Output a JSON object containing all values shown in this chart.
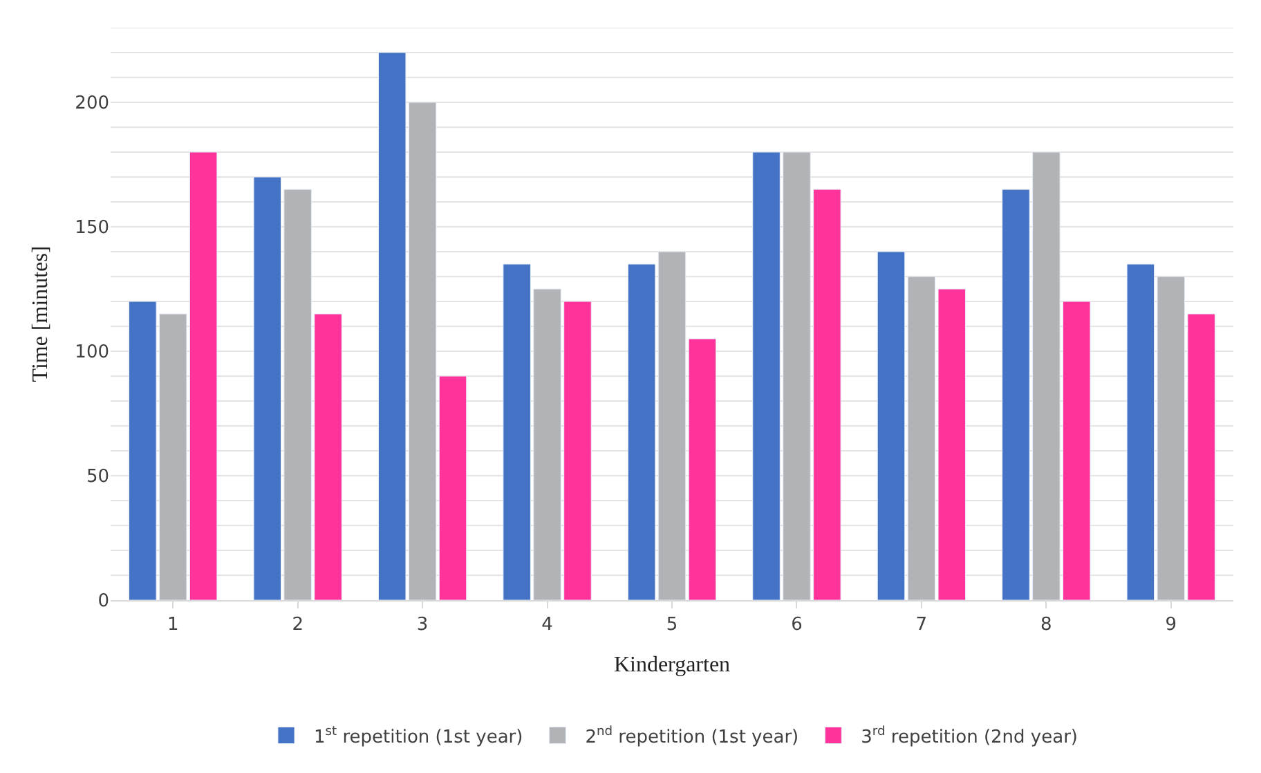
{
  "chart_data": {
    "type": "bar",
    "xlabel": "Kindergarten",
    "ylabel": "Time [minutes]",
    "categories": [
      "1",
      "2",
      "3",
      "4",
      "5",
      "6",
      "7",
      "8",
      "9"
    ],
    "series": [
      {
        "name": "1$^{st}$ repetition (1st year)",
        "color": "#4472c4",
        "values": [
          120,
          170,
          220,
          135,
          135,
          180,
          140,
          165,
          135
        ]
      },
      {
        "name": "2$^{nd}$ repetition (1st year)",
        "color": "#b2b3b6",
        "values": [
          115,
          165,
          200,
          125,
          140,
          180,
          130,
          180,
          130
        ]
      },
      {
        "name": "3$^{rd}$ repetition (2nd year)",
        "color": "#ff3399",
        "values": [
          180,
          115,
          90,
          120,
          105,
          165,
          125,
          120,
          115
        ]
      }
    ],
    "ylim": [
      0,
      230
    ],
    "yticks": [
      0,
      {
        "value": 10,
        "label": null
      },
      {
        "value": 20,
        "label": null
      },
      {
        "value": 30,
        "label": null
      },
      {
        "value": 40,
        "label": null
      },
      50,
      {
        "value": 60,
        "label": null
      },
      {
        "value": 70,
        "label": null
      },
      {
        "value": 80,
        "label": null
      },
      {
        "value": 90,
        "label": null
      },
      100,
      {
        "value": 110,
        "label": null
      },
      {
        "value": 120,
        "label": null
      },
      {
        "value": 130,
        "label": null
      },
      {
        "value": 140,
        "label": null
      },
      150,
      {
        "value": 160,
        "label": null
      },
      {
        "value": 170,
        "label": null
      },
      {
        "value": 180,
        "label": null
      },
      {
        "value": 190,
        "label": null
      },
      200,
      {
        "value": 210,
        "label": null
      },
      {
        "value": 220,
        "label": null
      },
      {
        "value": 230,
        "label": null
      }
    ],
    "grid": "y",
    "legend": "bottom"
  }
}
